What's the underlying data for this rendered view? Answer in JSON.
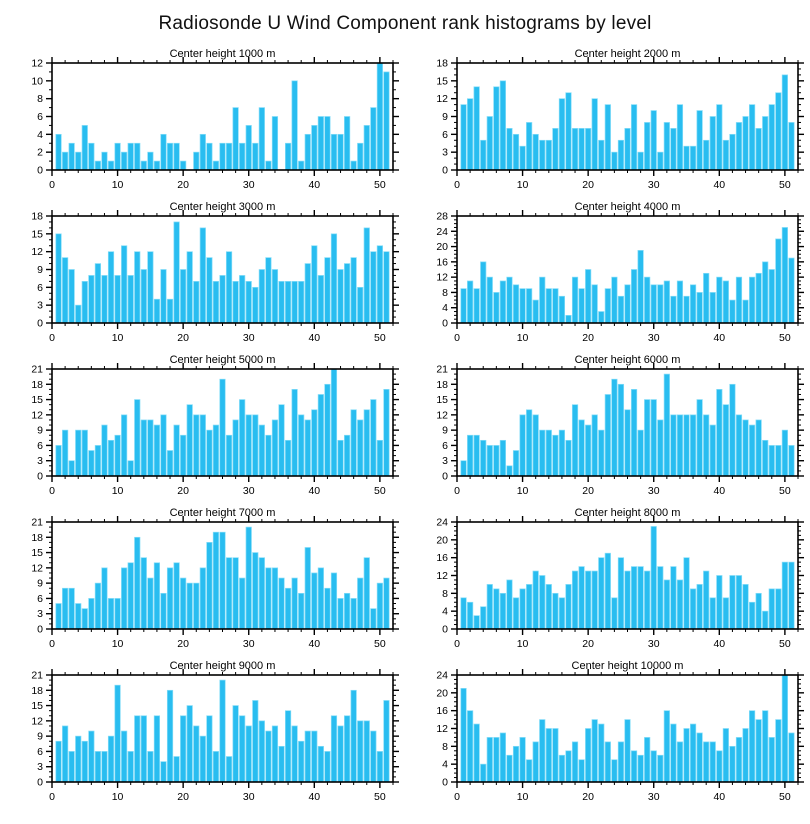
{
  "page_title": "Radiosonde U Wind Component rank histograms by level",
  "colors": {
    "bar_fill": "#29BDF0",
    "bar_highlight": "#85DDF8",
    "axis": "#000000",
    "text": "#000000",
    "background": "#FFFFFF"
  },
  "chart_data": [
    {
      "type": "bar",
      "title": "Center height 1000 m",
      "xlabel": "",
      "ylabel": "",
      "xlim": [
        0,
        52
      ],
      "ylim": [
        0,
        12
      ],
      "ytick_step": 2,
      "xticks": [
        0,
        10,
        20,
        30,
        40,
        50
      ],
      "x_minor_step": 2,
      "y_minor_step": 1,
      "rank_start": 1,
      "grid": "off",
      "legend": "none",
      "values": [
        4,
        2,
        3,
        2,
        5,
        3,
        1,
        2,
        1,
        3,
        2,
        3,
        3,
        1,
        2,
        1,
        4,
        3,
        3,
        1,
        0,
        2,
        4,
        3,
        1,
        3,
        3,
        7,
        3,
        5,
        3,
        7,
        1,
        6,
        0,
        3,
        10,
        1,
        4,
        5,
        6,
        6,
        4,
        4,
        6,
        1,
        3,
        5,
        7,
        12,
        11
      ]
    },
    {
      "type": "bar",
      "title": "Center height 2000 m",
      "xlabel": "",
      "ylabel": "",
      "xlim": [
        0,
        52
      ],
      "ylim": [
        0,
        18
      ],
      "ytick_step": 3,
      "xticks": [
        0,
        10,
        20,
        30,
        40,
        50
      ],
      "x_minor_step": 2,
      "y_minor_step": 1,
      "rank_start": 1,
      "grid": "off",
      "legend": "none",
      "values": [
        11,
        12,
        14,
        5,
        9,
        14,
        15,
        7,
        6,
        4,
        8,
        6,
        5,
        5,
        7,
        12,
        13,
        7,
        7,
        7,
        12,
        5,
        11,
        3,
        5,
        7,
        11,
        3,
        8,
        10,
        3,
        8,
        7,
        11,
        4,
        4,
        10,
        5,
        9,
        11,
        5,
        6,
        8,
        9,
        11,
        7,
        9,
        11,
        13,
        16,
        8
      ]
    },
    {
      "type": "bar",
      "title": "Center height 3000 m",
      "xlabel": "",
      "ylabel": "",
      "xlim": [
        0,
        52
      ],
      "ylim": [
        0,
        18
      ],
      "ytick_step": 3,
      "xticks": [
        0,
        10,
        20,
        30,
        40,
        50
      ],
      "x_minor_step": 2,
      "y_minor_step": 1,
      "rank_start": 1,
      "grid": "off",
      "legend": "none",
      "values": [
        15,
        11,
        9,
        3,
        7,
        8,
        10,
        8,
        12,
        8,
        13,
        8,
        12,
        9,
        12,
        4,
        9,
        4,
        17,
        9,
        12,
        7,
        16,
        11,
        7,
        8,
        12,
        7,
        8,
        7,
        6,
        9,
        11,
        9,
        7,
        7,
        7,
        7,
        10,
        13,
        8,
        11,
        15,
        9,
        10,
        11,
        6,
        16,
        12,
        13,
        12
      ]
    },
    {
      "type": "bar",
      "title": "Center height 4000 m",
      "xlabel": "",
      "ylabel": "",
      "xlim": [
        0,
        52
      ],
      "ylim": [
        0,
        28
      ],
      "ytick_step": 4,
      "xticks": [
        0,
        10,
        20,
        30,
        40,
        50
      ],
      "x_minor_step": 2,
      "y_minor_step": 1,
      "rank_start": 1,
      "grid": "off",
      "legend": "none",
      "values": [
        9,
        11,
        9,
        16,
        12,
        8,
        11,
        12,
        10,
        9,
        9,
        6,
        12,
        9,
        9,
        7,
        2,
        12,
        9,
        14,
        10,
        3,
        9,
        12,
        7,
        10,
        14,
        19,
        12,
        10,
        10,
        11,
        7,
        11,
        7,
        10,
        8,
        13,
        8,
        12,
        11,
        6,
        12,
        6,
        12,
        13,
        16,
        14,
        22,
        25,
        17
      ]
    },
    {
      "type": "bar",
      "title": "Center height 5000 m",
      "xlabel": "",
      "ylabel": "",
      "xlim": [
        0,
        52
      ],
      "ylim": [
        0,
        21
      ],
      "ytick_step": 3,
      "xticks": [
        0,
        10,
        20,
        30,
        40,
        50
      ],
      "x_minor_step": 2,
      "y_minor_step": 1,
      "rank_start": 1,
      "grid": "off",
      "legend": "none",
      "values": [
        6,
        9,
        3,
        9,
        9,
        5,
        6,
        10,
        7,
        8,
        12,
        3,
        15,
        11,
        11,
        10,
        12,
        5,
        10,
        8,
        14,
        12,
        12,
        9,
        10,
        19,
        8,
        11,
        15,
        12,
        12,
        10,
        8,
        11,
        14,
        7,
        17,
        12,
        11,
        13,
        16,
        18,
        21,
        7,
        8,
        13,
        11,
        13,
        15,
        7,
        17
      ]
    },
    {
      "type": "bar",
      "title": "Center height 6000 m",
      "xlabel": "",
      "ylabel": "",
      "xlim": [
        0,
        52
      ],
      "ylim": [
        0,
        21
      ],
      "ytick_step": 3,
      "xticks": [
        0,
        10,
        20,
        30,
        40,
        50
      ],
      "x_minor_step": 2,
      "y_minor_step": 1,
      "rank_start": 1,
      "grid": "off",
      "legend": "none",
      "values": [
        3,
        8,
        8,
        7,
        6,
        6,
        7,
        2,
        5,
        12,
        13,
        12,
        9,
        9,
        8,
        9,
        7,
        14,
        11,
        10,
        12,
        9,
        16,
        19,
        18,
        13,
        17,
        9,
        15,
        15,
        11,
        20,
        12,
        12,
        12,
        12,
        15,
        12,
        10,
        17,
        14,
        18,
        12,
        11,
        10,
        11,
        7,
        6,
        6,
        9,
        6
      ]
    },
    {
      "type": "bar",
      "title": "Center height 7000 m",
      "xlabel": "",
      "ylabel": "",
      "xlim": [
        0,
        52
      ],
      "ylim": [
        0,
        21
      ],
      "ytick_step": 3,
      "xticks": [
        0,
        10,
        20,
        30,
        40,
        50
      ],
      "x_minor_step": 2,
      "y_minor_step": 1,
      "rank_start": 1,
      "grid": "off",
      "legend": "none",
      "values": [
        5,
        8,
        8,
        5,
        4,
        6,
        9,
        12,
        6,
        6,
        12,
        13,
        18,
        14,
        10,
        13,
        7,
        12,
        13,
        10,
        9,
        9,
        12,
        17,
        19,
        19,
        14,
        14,
        10,
        20,
        15,
        14,
        12,
        12,
        10,
        8,
        10,
        7,
        16,
        11,
        12,
        8,
        11,
        6,
        7,
        6,
        10,
        14,
        4,
        9,
        10
      ]
    },
    {
      "type": "bar",
      "title": "Center height 8000 m",
      "xlabel": "",
      "ylabel": "",
      "xlim": [
        0,
        52
      ],
      "ylim": [
        0,
        24
      ],
      "ytick_step": 4,
      "xticks": [
        0,
        10,
        20,
        30,
        40,
        50
      ],
      "x_minor_step": 2,
      "y_minor_step": 1,
      "rank_start": 1,
      "grid": "off",
      "legend": "none",
      "values": [
        7,
        6,
        3,
        5,
        10,
        9,
        8,
        11,
        7,
        9,
        10,
        13,
        12,
        10,
        8,
        7,
        10,
        13,
        14,
        13,
        13,
        16,
        17,
        7,
        16,
        13,
        14,
        14,
        13,
        23,
        14,
        11,
        14,
        11,
        16,
        9,
        10,
        13,
        7,
        12,
        7,
        12,
        12,
        10,
        6,
        8,
        4,
        9,
        9,
        15,
        15
      ]
    },
    {
      "type": "bar",
      "title": "Center height 9000 m",
      "xlabel": "",
      "ylabel": "",
      "xlim": [
        0,
        52
      ],
      "ylim": [
        0,
        21
      ],
      "ytick_step": 3,
      "xticks": [
        0,
        10,
        20,
        30,
        40,
        50
      ],
      "x_minor_step": 2,
      "y_minor_step": 1,
      "rank_start": 1,
      "grid": "off",
      "legend": "none",
      "values": [
        8,
        11,
        6,
        9,
        8,
        10,
        6,
        6,
        9,
        19,
        10,
        6,
        13,
        13,
        6,
        13,
        4,
        18,
        5,
        13,
        15,
        11,
        9,
        13,
        6,
        20,
        5,
        15,
        13,
        11,
        16,
        12,
        10,
        11,
        7,
        14,
        11,
        8,
        10,
        10,
        7,
        6,
        13,
        11,
        13,
        18,
        12,
        12,
        10,
        6,
        16
      ]
    },
    {
      "type": "bar",
      "title": "Center height 10000 m",
      "xlabel": "",
      "ylabel": "",
      "xlim": [
        0,
        52
      ],
      "ylim": [
        0,
        24
      ],
      "ytick_step": 4,
      "xticks": [
        0,
        10,
        20,
        30,
        40,
        50
      ],
      "x_minor_step": 2,
      "y_minor_step": 1,
      "rank_start": 1,
      "grid": "off",
      "legend": "none",
      "values": [
        21,
        16,
        13,
        4,
        10,
        10,
        11,
        6,
        8,
        10,
        5,
        9,
        14,
        12,
        12,
        6,
        7,
        9,
        5,
        12,
        14,
        13,
        9,
        5,
        9,
        14,
        7,
        6,
        10,
        7,
        6,
        16,
        13,
        9,
        12,
        13,
        11,
        9,
        9,
        7,
        12,
        8,
        10,
        12,
        16,
        14,
        16,
        10,
        14,
        24,
        11
      ]
    }
  ]
}
